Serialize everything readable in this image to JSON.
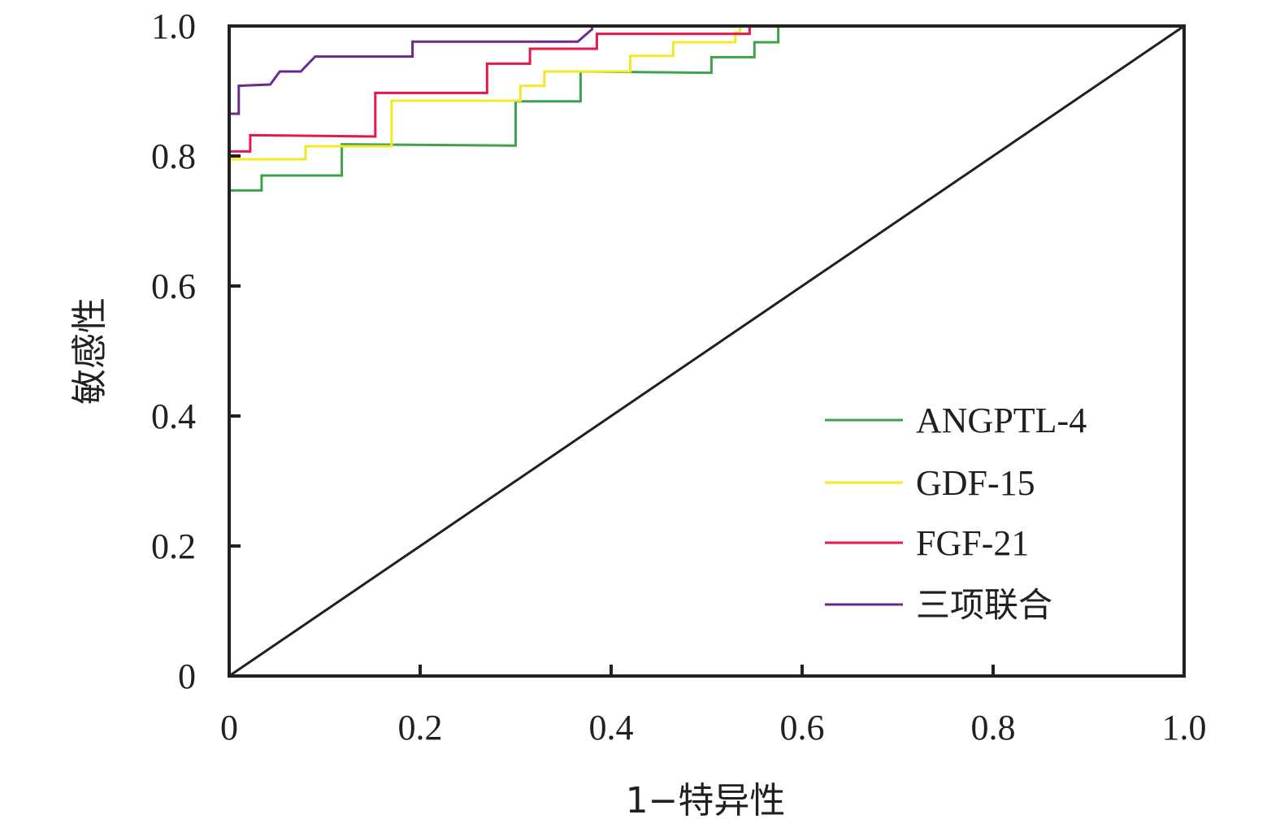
{
  "chart_data": {
    "type": "line",
    "title": "",
    "xlabel": "1−特异性",
    "ylabel": "敏感性",
    "xlim": [
      0,
      1.0
    ],
    "ylim": [
      0,
      1.0
    ],
    "x_ticks": [
      "0",
      "0.2",
      "0.4",
      "0.6",
      "0.8",
      "1.0"
    ],
    "y_ticks": [
      "0",
      "0.2",
      "0.4",
      "0.6",
      "0.8",
      "1.0"
    ],
    "grid": false,
    "legend_position": "bottom-right",
    "reference_line": {
      "x": [
        0,
        1
      ],
      "y": [
        0,
        1
      ],
      "color": "#231f20"
    },
    "series": [
      {
        "name": "ANGPTL-4",
        "color": "#3fa14a",
        "x": [
          0,
          0.034,
          0.034,
          0.118,
          0.118,
          0.3,
          0.3,
          0.368,
          0.368,
          0.505,
          0.505,
          0.55,
          0.55,
          0.575,
          0.575
        ],
        "y": [
          0.747,
          0.747,
          0.77,
          0.77,
          0.818,
          0.816,
          0.884,
          0.884,
          0.93,
          0.928,
          0.952,
          0.952,
          0.975,
          0.975,
          1.0
        ]
      },
      {
        "name": "GDF-15",
        "color": "#f2e82a",
        "x": [
          0,
          0.08,
          0.08,
          0.17,
          0.17,
          0.305,
          0.305,
          0.33,
          0.33,
          0.42,
          0.42,
          0.465,
          0.465,
          0.53,
          0.53,
          0.535,
          0.535
        ],
        "y": [
          0.795,
          0.795,
          0.815,
          0.815,
          0.885,
          0.885,
          0.908,
          0.908,
          0.93,
          0.93,
          0.954,
          0.954,
          0.975,
          0.975,
          0.99,
          0.99,
          1.0
        ]
      },
      {
        "name": "FGF-21",
        "color": "#e2194a",
        "x": [
          0,
          0.022,
          0.022,
          0.153,
          0.153,
          0.27,
          0.27,
          0.315,
          0.315,
          0.385,
          0.385,
          0.545,
          0.545
        ],
        "y": [
          0.807,
          0.807,
          0.832,
          0.83,
          0.897,
          0.897,
          0.942,
          0.942,
          0.965,
          0.965,
          0.988,
          0.988,
          1.0
        ]
      },
      {
        "name": "三项联合",
        "color": "#6a2c8c",
        "x": [
          0,
          0.01,
          0.01,
          0.043,
          0.053,
          0.075,
          0.09,
          0.192,
          0.192,
          0.365,
          0.38,
          0.38
        ],
        "y": [
          0.865,
          0.865,
          0.908,
          0.91,
          0.93,
          0.93,
          0.953,
          0.953,
          0.976,
          0.976,
          0.995,
          1.0
        ]
      }
    ]
  }
}
